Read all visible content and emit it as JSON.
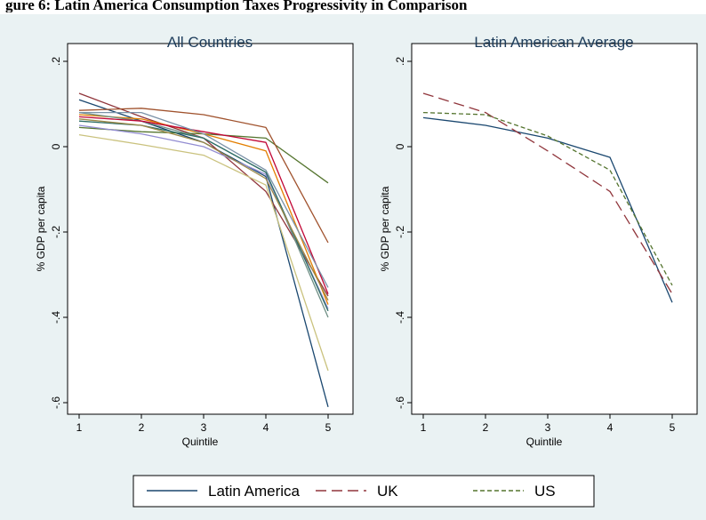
{
  "caption": "gure 6: Latin America Consumption Taxes Progressivity in Comparison",
  "colors": {
    "figure_bg": "#eaf2f3",
    "plot_bg": "#ffffff",
    "latin_america": "#1a476f",
    "uk": "#90353b",
    "us": "#55752f"
  },
  "legend": {
    "entries": [
      {
        "label": "Latin America",
        "color": "#1a476f",
        "dash": "solid"
      },
      {
        "label": "UK",
        "color": "#90353b",
        "dash": "long-dash"
      },
      {
        "label": "US",
        "color": "#55752f",
        "dash": "short-dash"
      }
    ]
  },
  "chart_data": [
    {
      "type": "line",
      "title": "All Countries",
      "xlabel": "Quintile",
      "ylabel": "% GDP per capita",
      "x": [
        1,
        2,
        3,
        4,
        5
      ],
      "xticks": [
        "1",
        "2",
        "3",
        "4",
        "5"
      ],
      "yticks": [
        ".2",
        "0",
        "-.2",
        "-.4",
        "-.6"
      ],
      "xlim": [
        1,
        5
      ],
      "ylim": [
        -0.6,
        0.2
      ],
      "grid": false,
      "series": [
        {
          "color": "#1a476f",
          "values": [
            0.11,
            0.06,
            0.01,
            -0.07,
            -0.61
          ]
        },
        {
          "color": "#90353b",
          "values": [
            0.125,
            0.07,
            0.02,
            -0.105,
            -0.35
          ]
        },
        {
          "color": "#55752f",
          "values": [
            0.045,
            0.035,
            0.03,
            0.02,
            -0.085
          ]
        },
        {
          "color": "#e37e00",
          "values": [
            0.075,
            0.065,
            0.03,
            -0.01,
            -0.37
          ]
        },
        {
          "color": "#6e8e84",
          "values": [
            0.08,
            0.06,
            0.02,
            -0.06,
            -0.4
          ]
        },
        {
          "color": "#c10534",
          "values": [
            0.07,
            0.06,
            0.035,
            0.01,
            -0.345
          ]
        },
        {
          "color": "#938dd2",
          "values": [
            0.05,
            0.03,
            0.0,
            -0.065,
            -0.38
          ]
        },
        {
          "color": "#cac27e",
          "values": [
            0.028,
            0.005,
            -0.02,
            -0.09,
            -0.525
          ]
        },
        {
          "color": "#a0522d",
          "values": [
            0.085,
            0.09,
            0.075,
            0.045,
            -0.225
          ]
        },
        {
          "color": "#7b92a8",
          "values": [
            0.08,
            0.08,
            0.03,
            -0.055,
            -0.33
          ]
        },
        {
          "color": "#2d6d66",
          "values": [
            0.06,
            0.05,
            0.02,
            -0.06,
            -0.385
          ]
        },
        {
          "color": "#9c8847",
          "values": [
            0.065,
            0.05,
            0.01,
            -0.075,
            -0.36
          ]
        }
      ]
    },
    {
      "type": "line",
      "title": "Latin American Average",
      "xlabel": "Quintile",
      "ylabel": "% GDP per capita",
      "x": [
        1,
        2,
        3,
        4,
        5
      ],
      "xticks": [
        "1",
        "2",
        "3",
        "4",
        "5"
      ],
      "yticks": [
        ".2",
        "0",
        "-.2",
        "-.4",
        "-.6"
      ],
      "xlim": [
        1,
        5
      ],
      "ylim": [
        -0.6,
        0.2
      ],
      "grid": false,
      "series": [
        {
          "name": "Latin America",
          "color": "#1a476f",
          "dash": "solid",
          "values": [
            0.068,
            0.05,
            0.02,
            -0.025,
            -0.365
          ]
        },
        {
          "name": "UK",
          "color": "#90353b",
          "dash": "long-dash",
          "values": [
            0.125,
            0.08,
            -0.01,
            -0.105,
            -0.345
          ]
        },
        {
          "name": "US",
          "color": "#55752f",
          "dash": "short-dash",
          "values": [
            0.08,
            0.075,
            0.025,
            -0.055,
            -0.325
          ]
        }
      ]
    }
  ]
}
